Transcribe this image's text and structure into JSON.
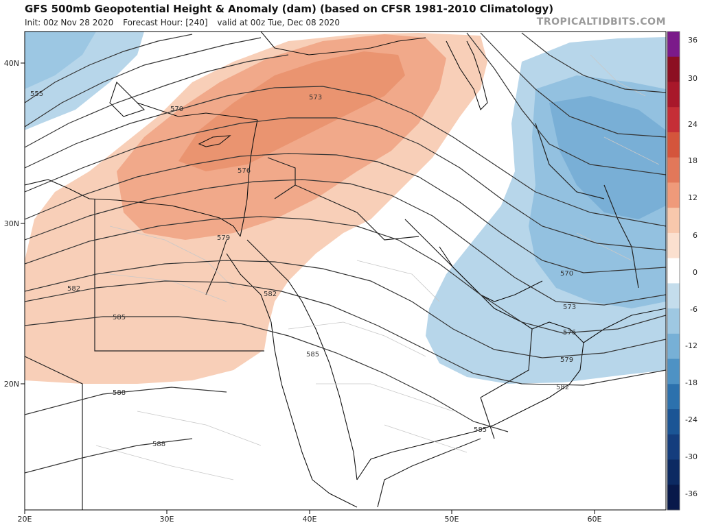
{
  "header": {
    "title": "GFS 500mb Geopotential Height & Anomaly (dam) (based on CFSR 1981-2010 Climatology)",
    "init": "Init: 00z Nov 28 2020",
    "forecast_hour": "Forecast Hour: [240]",
    "valid": "valid at 00z Tue, Dec 08 2020",
    "site": "TROPICALTIDBITS.COM"
  },
  "axes": {
    "lon_ticks": [
      "20E",
      "30E",
      "40E",
      "50E",
      "60E"
    ],
    "lat_ticks": [
      "40N",
      "30N",
      "20N"
    ]
  },
  "colorbar": {
    "labels": [
      "36",
      "30",
      "24",
      "18",
      "12",
      "6",
      "0",
      "-6",
      "-12",
      "-18",
      "-24",
      "-30",
      "-36"
    ],
    "colors": [
      "#7b1a8a",
      "#8c0f22",
      "#a8182a",
      "#c52e36",
      "#d4553c",
      "#e2785a",
      "#ef9a7a",
      "#f8c8ac",
      "#fbe0cf",
      "#ffffff",
      "#c4ddec",
      "#9ec8e2",
      "#77b0d6",
      "#4e92c4",
      "#2c71ad",
      "#1b5595",
      "#143d7d",
      "#0c2a62",
      "#08194a"
    ]
  },
  "contours": {
    "labels": [
      "555",
      "570",
      "573",
      "576",
      "579",
      "582",
      "585",
      "588",
      "588",
      "570",
      "573",
      "576",
      "579",
      "582",
      "585",
      "582",
      "585"
    ]
  },
  "colors": {
    "warm": "#f4b896",
    "warm_light": "#f9d6c2",
    "warm_mid": "#ee9f7e",
    "cool": "#aecfe6",
    "cool_mid": "#8fbfdf",
    "cool_dark": "#6fa9d3"
  }
}
